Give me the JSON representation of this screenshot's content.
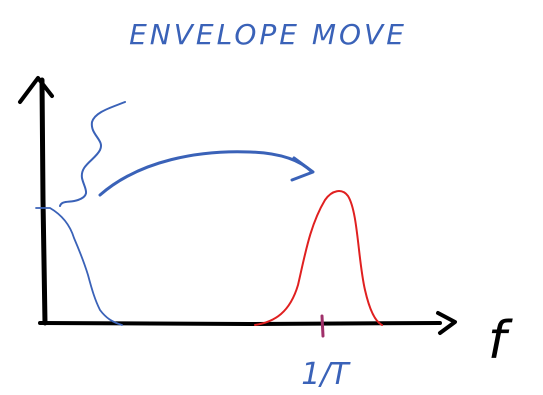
{
  "title": "ENVELOPE MOVE",
  "axis_label": "f",
  "tick_label": "1/T"
}
